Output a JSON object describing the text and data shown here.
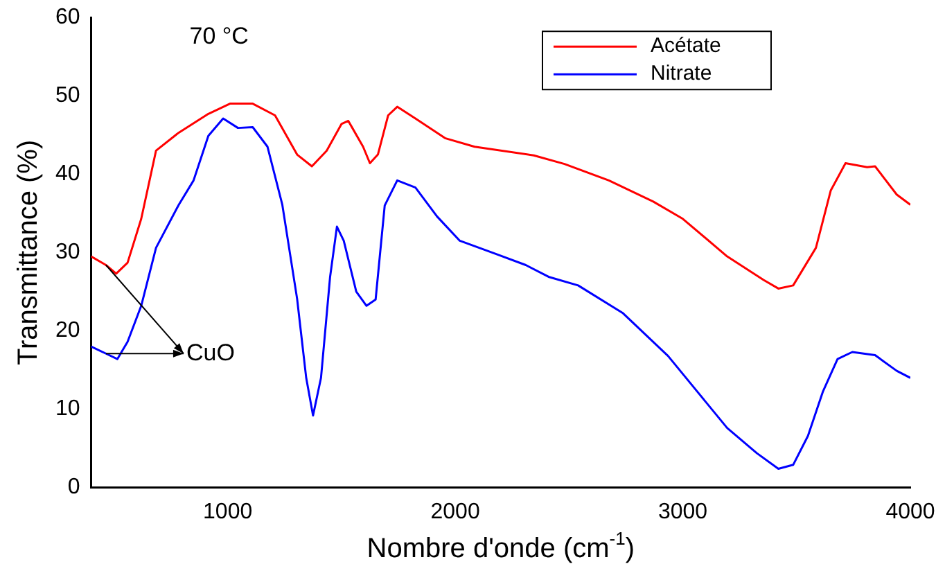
{
  "chart_data": {
    "type": "line",
    "xlabel": "Nombre d'onde (cm$^{-1}$)",
    "ylabel": "Transmittance (%)",
    "xlim": [
      400,
      4000
    ],
    "xticks": [
      1000,
      2000,
      3000,
      4000
    ],
    "ylim": [
      0,
      60
    ],
    "yticks": [
      0,
      10,
      20,
      30,
      40,
      50,
      60
    ],
    "grid": false,
    "legend": "top right",
    "marker": "none",
    "line_style": "solid",
    "annotations": [
      "70 °C",
      {
        "text": "CuO",
        "x": 465,
        "y": 17.1
      }
    ],
    "series": [
      {
        "name": "Acétate",
        "color": "#ff0000",
        "x": [
          400,
          465,
          510,
          560,
          620,
          685,
          785,
          915,
          1010,
          1110,
          1208,
          1305,
          1370,
          1435,
          1500,
          1530,
          1595,
          1625,
          1660,
          1705,
          1745,
          1825,
          1955,
          2085,
          2345,
          2480,
          2675,
          2870,
          3000,
          3195,
          3355,
          3420,
          3485,
          3585,
          3650,
          3715,
          3810,
          3845,
          3940,
          4000
        ],
        "values": [
          29.5,
          28.4,
          27.3,
          28.7,
          34.3,
          43,
          45.3,
          47.7,
          49,
          49,
          47.5,
          42.5,
          41,
          43,
          46.4,
          46.8,
          43.5,
          41.4,
          42.5,
          47.5,
          48.6,
          47.1,
          44.6,
          43.5,
          42.4,
          41.3,
          39.2,
          36.5,
          34.3,
          29.5,
          26.5,
          25.4,
          25.8,
          30.6,
          37.9,
          41.4,
          40.9,
          41,
          37.4,
          36.1
        ]
      },
      {
        "name": "Nitrate",
        "color": "#0000ff",
        "x": [
          400,
          465,
          515,
          560,
          620,
          685,
          785,
          850,
          915,
          980,
          1045,
          1110,
          1175,
          1240,
          1305,
          1345,
          1375,
          1410,
          1450,
          1480,
          1510,
          1565,
          1610,
          1650,
          1690,
          1745,
          1825,
          1920,
          2020,
          2180,
          2310,
          2410,
          2540,
          2735,
          2935,
          3065,
          3195,
          3325,
          3420,
          3485,
          3550,
          3615,
          3680,
          3745,
          3845,
          3940,
          4000
        ],
        "values": [
          18,
          17.1,
          16.4,
          18.6,
          23.2,
          30.6,
          36.1,
          39.2,
          44.9,
          47.1,
          45.9,
          46,
          43.5,
          36.1,
          24.1,
          14,
          9.2,
          14,
          26.9,
          33.3,
          31.5,
          25,
          23.2,
          24,
          36,
          39.2,
          38.3,
          34.6,
          31.5,
          29.8,
          28.4,
          26.9,
          25.8,
          22.3,
          16.8,
          12.2,
          7.6,
          4.4,
          2.4,
          2.9,
          6.6,
          12.2,
          16.4,
          17.3,
          16.9,
          14.9,
          14
        ]
      }
    ]
  }
}
